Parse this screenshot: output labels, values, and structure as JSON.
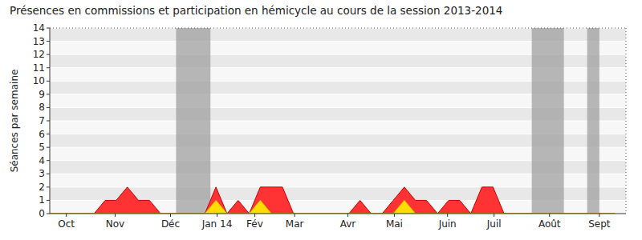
{
  "chart_data": {
    "type": "area",
    "title": "Présences en commissions et participation en hémicycle au cours de la session 2013-2014",
    "y_label": "Séances par semaine",
    "x": [
      0,
      1,
      2,
      3,
      4,
      5,
      6,
      7,
      8,
      9,
      10,
      11,
      12,
      13,
      14,
      15,
      16,
      17,
      18,
      19,
      20,
      21,
      22,
      23,
      24,
      25,
      26,
      27,
      28,
      29,
      30,
      31,
      32,
      33,
      34,
      35,
      36,
      37,
      38,
      39,
      40,
      41,
      42,
      43,
      44,
      45,
      46,
      47,
      48,
      49,
      50,
      51
    ],
    "series": [
      {
        "color": "#ff3333",
        "values": [
          0,
          0,
          0,
          0,
          0,
          1,
          1,
          2,
          1,
          1,
          0,
          0,
          0,
          0,
          0,
          2,
          0,
          1,
          0,
          2,
          2,
          2,
          0,
          0,
          0,
          0,
          0,
          0,
          1,
          0,
          0,
          1,
          2,
          1,
          1,
          0,
          1,
          1,
          0,
          2,
          2,
          0,
          0,
          0,
          0,
          0,
          0,
          0,
          0,
          0,
          0,
          0
        ]
      },
      {
        "color": "#ffdd00",
        "values": [
          0,
          0,
          0,
          0,
          0,
          0,
          0,
          0,
          0,
          0,
          0,
          0,
          0,
          0,
          0,
          1,
          0,
          0,
          0,
          1,
          0,
          0,
          0,
          0,
          0,
          0,
          0,
          0,
          0,
          0,
          0,
          0,
          1,
          0,
          0,
          0,
          0,
          0,
          0,
          0,
          0,
          0,
          0,
          0,
          0,
          0,
          0,
          0,
          0,
          0,
          0,
          0
        ]
      }
    ],
    "shaded_periods": [
      [
        11.4,
        14.5
      ],
      [
        43.5,
        46.4
      ],
      [
        48.5,
        49.6
      ]
    ],
    "xlim": [
      0,
      52
    ],
    "xticks": [
      {
        "value": 1.5,
        "label": "Oct"
      },
      {
        "value": 5.9,
        "label": "Nov"
      },
      {
        "value": 10.9,
        "label": "Déc"
      },
      {
        "value": 15.1,
        "label": "Jan 14"
      },
      {
        "value": 18.5,
        "label": "Fév"
      },
      {
        "value": 22.1,
        "label": "Mar"
      },
      {
        "value": 26.9,
        "label": "Avr"
      },
      {
        "value": 31.1,
        "label": "Mai"
      },
      {
        "value": 35.9,
        "label": "Juin"
      },
      {
        "value": 40.1,
        "label": "Juil"
      },
      {
        "value": 45.1,
        "label": "Août"
      },
      {
        "value": 49.6,
        "label": "Sept"
      }
    ],
    "ylim": [
      0,
      14
    ],
    "yticks": [
      0,
      1,
      2,
      3,
      4,
      5,
      6,
      7,
      8,
      9,
      10,
      11,
      12,
      13,
      14
    ],
    "grid": true
  }
}
